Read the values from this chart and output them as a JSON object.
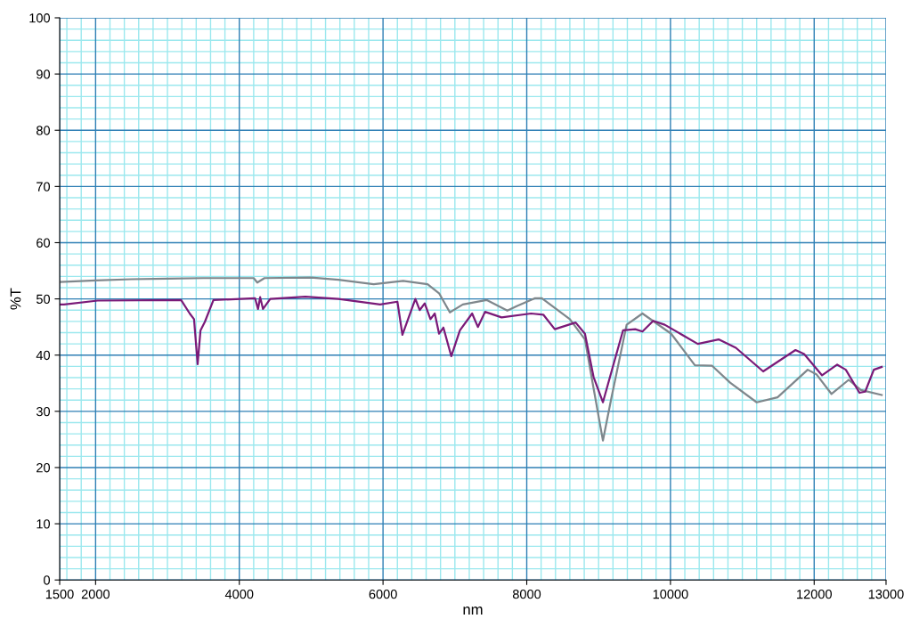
{
  "chart_data": {
    "type": "line",
    "xlabel": "nm",
    "ylabel": "%T",
    "xlim": [
      1500,
      13000
    ],
    "xticks": [
      1500,
      {
        "value": 1600,
        "label": null
      },
      {
        "value": 1800,
        "label": null
      },
      2000,
      {
        "value": 2200,
        "label": null
      },
      {
        "value": 2400,
        "label": null
      },
      {
        "value": 2600,
        "label": null
      },
      {
        "value": 2800,
        "label": null
      },
      {
        "value": 3000,
        "label": null
      },
      {
        "value": 3200,
        "label": null
      },
      {
        "value": 3400,
        "label": null
      },
      {
        "value": 3600,
        "label": null
      },
      {
        "value": 3800,
        "label": null
      },
      4000,
      {
        "value": 4200,
        "label": null
      },
      {
        "value": 4400,
        "label": null
      },
      {
        "value": 4600,
        "label": null
      },
      {
        "value": 4800,
        "label": null
      },
      {
        "value": 5000,
        "label": null
      },
      {
        "value": 5200,
        "label": null
      },
      {
        "value": 5400,
        "label": null
      },
      {
        "value": 5600,
        "label": null
      },
      {
        "value": 5800,
        "label": null
      },
      6000,
      {
        "value": 6200,
        "label": null
      },
      {
        "value": 6400,
        "label": null
      },
      {
        "value": 6600,
        "label": null
      },
      {
        "value": 6800,
        "label": null
      },
      {
        "value": 7000,
        "label": null
      },
      {
        "value": 7200,
        "label": null
      },
      {
        "value": 7400,
        "label": null
      },
      {
        "value": 7600,
        "label": null
      },
      {
        "value": 7800,
        "label": null
      },
      8000,
      {
        "value": 8200,
        "label": null
      },
      {
        "value": 8400,
        "label": null
      },
      {
        "value": 8600,
        "label": null
      },
      {
        "value": 8800,
        "label": null
      },
      {
        "value": 9000,
        "label": null
      },
      {
        "value": 9200,
        "label": null
      },
      {
        "value": 9400,
        "label": null
      },
      {
        "value": 9600,
        "label": null
      },
      {
        "value": 9800,
        "label": null
      },
      10000,
      {
        "value": 10200,
        "label": null
      },
      {
        "value": 10400,
        "label": null
      },
      {
        "value": 10600,
        "label": null
      },
      {
        "value": 10800,
        "label": null
      },
      {
        "value": 11000,
        "label": null
      },
      {
        "value": 11200,
        "label": null
      },
      {
        "value": 11400,
        "label": null
      },
      {
        "value": 11600,
        "label": null
      },
      {
        "value": 11800,
        "label": null
      },
      12000,
      {
        "value": 12200,
        "label": null
      },
      {
        "value": 12400,
        "label": null
      },
      {
        "value": 12600,
        "label": null
      },
      {
        "value": 12800,
        "label": null
      },
      13000
    ],
    "ylim": [
      0,
      100
    ],
    "yticks": [
      0,
      {
        "value": 2,
        "label": null
      },
      {
        "value": 4,
        "label": null
      },
      {
        "value": 6,
        "label": null
      },
      {
        "value": 8,
        "label": null
      },
      10,
      {
        "value": 12,
        "label": null
      },
      {
        "value": 14,
        "label": null
      },
      {
        "value": 16,
        "label": null
      },
      {
        "value": 18,
        "label": null
      },
      20,
      {
        "value": 22,
        "label": null
      },
      {
        "value": 24,
        "label": null
      },
      {
        "value": 26,
        "label": null
      },
      {
        "value": 28,
        "label": null
      },
      30,
      {
        "value": 32,
        "label": null
      },
      {
        "value": 34,
        "label": null
      },
      {
        "value": 36,
        "label": null
      },
      {
        "value": 38,
        "label": null
      },
      40,
      {
        "value": 42,
        "label": null
      },
      {
        "value": 44,
        "label": null
      },
      {
        "value": 46,
        "label": null
      },
      {
        "value": 48,
        "label": null
      },
      50,
      {
        "value": 52,
        "label": null
      },
      {
        "value": 54,
        "label": null
      },
      {
        "value": 56,
        "label": null
      },
      {
        "value": 58,
        "label": null
      },
      60,
      {
        "value": 62,
        "label": null
      },
      {
        "value": 64,
        "label": null
      },
      {
        "value": 66,
        "label": null
      },
      {
        "value": 68,
        "label": null
      },
      70,
      {
        "value": 72,
        "label": null
      },
      {
        "value": 74,
        "label": null
      },
      {
        "value": 76,
        "label": null
      },
      {
        "value": 78,
        "label": null
      },
      80,
      {
        "value": 82,
        "label": null
      },
      {
        "value": 84,
        "label": null
      },
      {
        "value": 86,
        "label": null
      },
      {
        "value": 88,
        "label": null
      },
      90,
      {
        "value": 92,
        "label": null
      },
      {
        "value": 94,
        "label": null
      },
      {
        "value": 96,
        "label": null
      },
      {
        "value": 98,
        "label": null
      },
      100
    ],
    "grid": true,
    "marker": "none",
    "line_style": "solid",
    "series": [
      {
        "color": "#7f878c",
        "x": [
          1500,
          2000,
          2500,
          3000,
          3500,
          4200,
          4250,
          4350,
          5000,
          5380,
          5870,
          6280,
          6620,
          6780,
          6930,
          7110,
          7440,
          7730,
          7860,
          8110,
          8210,
          8600,
          8810,
          8930,
          9060,
          9180,
          9390,
          9610,
          10010,
          10340,
          10580,
          10830,
          11200,
          11490,
          11910,
          12030,
          12240,
          12480,
          12650,
          12940
        ],
        "values": [
          53.0,
          53.3,
          53.5,
          53.6,
          53.7,
          53.7,
          52.9,
          53.7,
          53.8,
          53.4,
          52.6,
          53.2,
          52.6,
          51.0,
          47.6,
          49.0,
          49.8,
          47.9,
          48.7,
          50.1,
          50.1,
          46.4,
          42.8,
          34.1,
          24.8,
          32.5,
          45.4,
          47.4,
          43.8,
          38.2,
          38.1,
          35.1,
          31.6,
          32.5,
          37.4,
          36.6,
          33.1,
          35.6,
          33.8,
          32.9
        ]
      },
      {
        "color": "#7a1a78",
        "x": [
          1500,
          1560,
          2030,
          3190,
          3310,
          3370,
          3420,
          3460,
          3520,
          3640,
          4220,
          4260,
          4290,
          4330,
          4430,
          4920,
          5380,
          5960,
          6200,
          6270,
          6450,
          6510,
          6580,
          6660,
          6720,
          6780,
          6840,
          6950,
          7070,
          7240,
          7320,
          7420,
          7650,
          8060,
          8230,
          8390,
          8680,
          8810,
          8930,
          9060,
          9180,
          9340,
          9510,
          9610,
          9760,
          9920,
          10380,
          10670,
          10910,
          11290,
          11740,
          11860,
          12110,
          12320,
          12440,
          12630,
          12710,
          12830,
          12940
        ],
        "values": [
          49.0,
          49.0,
          49.7,
          49.8,
          47.4,
          46.4,
          38.4,
          44.4,
          45.9,
          49.8,
          50.1,
          48.2,
          50.3,
          48.2,
          50.0,
          50.4,
          50.0,
          49.0,
          49.5,
          43.6,
          50.0,
          48.0,
          49.2,
          46.4,
          47.4,
          43.8,
          44.9,
          39.8,
          44.4,
          47.4,
          45.0,
          47.7,
          46.7,
          47.4,
          47.2,
          44.6,
          45.8,
          43.8,
          36.1,
          31.6,
          37.1,
          44.4,
          44.6,
          44.2,
          46.1,
          45.4,
          42.0,
          42.8,
          41.3,
          37.1,
          40.9,
          40.2,
          36.4,
          38.3,
          37.4,
          33.3,
          33.5,
          37.4,
          37.9
        ]
      }
    ]
  }
}
